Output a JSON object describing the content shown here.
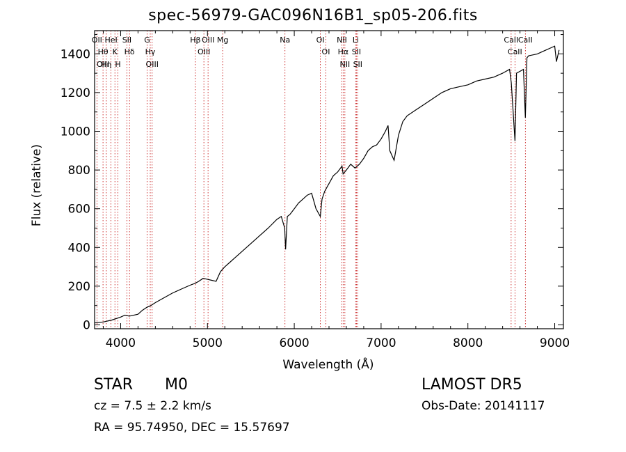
{
  "chart_data": {
    "type": "line",
    "title": "spec-56979-GAC096N16B1_sp05-206.fits",
    "xlabel": "Wavelength (Å)",
    "ylabel": "Flux (relative)",
    "xlim": [
      3700,
      9100
    ],
    "ylim": [
      -20,
      1520
    ],
    "x_ticks": [
      4000,
      5000,
      6000,
      7000,
      8000,
      9000
    ],
    "y_ticks": [
      0,
      200,
      400,
      600,
      800,
      1000,
      1200,
      1400
    ],
    "grid": false,
    "series": [
      {
        "x": [
          3700,
          3800,
          3900,
          4000,
          4050,
          4100,
          4200,
          4250,
          4300,
          4350,
          4400,
          4500,
          4600,
          4700,
          4800,
          4860,
          4900,
          4950,
          5000,
          5050,
          5100,
          5150,
          5200,
          5250,
          5300,
          5400,
          5500,
          5600,
          5700,
          5800,
          5850,
          5890,
          5900,
          5920,
          5950,
          6000,
          6050,
          6100,
          6150,
          6200,
          6250,
          6300,
          6320,
          6350,
          6400,
          6450,
          6500,
          6550,
          6563,
          6600,
          6650,
          6700,
          6750,
          6800,
          6850,
          6900,
          6950,
          7000,
          7050,
          7080,
          7100,
          7150,
          7200,
          7250,
          7300,
          7400,
          7500,
          7600,
          7700,
          7800,
          7900,
          8000,
          8100,
          8200,
          8300,
          8400,
          8480,
          8500,
          8542,
          8560,
          8600,
          8640,
          8662,
          8680,
          8700,
          8800,
          8850,
          8900,
          8950,
          9000,
          9020,
          9050
        ],
        "y": [
          10,
          15,
          25,
          40,
          50,
          45,
          55,
          75,
          90,
          100,
          115,
          140,
          165,
          185,
          205,
          215,
          225,
          240,
          235,
          230,
          225,
          275,
          300,
          320,
          340,
          380,
          420,
          460,
          500,
          545,
          560,
          500,
          390,
          560,
          570,
          600,
          630,
          650,
          670,
          680,
          600,
          560,
          650,
          690,
          730,
          770,
          790,
          820,
          780,
          800,
          830,
          810,
          830,
          860,
          900,
          920,
          930,
          960,
          1000,
          1030,
          900,
          850,
          980,
          1050,
          1080,
          1110,
          1140,
          1170,
          1200,
          1220,
          1230,
          1240,
          1260,
          1270,
          1280,
          1300,
          1320,
          1250,
          950,
          1300,
          1310,
          1320,
          1070,
          1380,
          1390,
          1400,
          1410,
          1420,
          1430,
          1440,
          1360,
          1420
        ]
      }
    ],
    "lines": [
      {
        "x": 3727,
        "labels": [
          "OII"
        ]
      },
      {
        "x": 3797,
        "labels": [
          "Hθ",
          "OIII"
        ]
      },
      {
        "x": 3835,
        "labels": [
          "Hη"
        ]
      },
      {
        "x": 3889,
        "labels": [
          "HeI"
        ]
      },
      {
        "x": 3934,
        "labels": [
          "K"
        ]
      },
      {
        "x": 3969,
        "labels": [
          "H"
        ]
      },
      {
        "x": 4072,
        "labels": [
          "SII"
        ]
      },
      {
        "x": 4102,
        "labels": [
          "Hδ"
        ]
      },
      {
        "x": 4305,
        "labels": [
          "G"
        ]
      },
      {
        "x": 4341,
        "labels": [
          "Hγ"
        ]
      },
      {
        "x": 4363,
        "labels": [
          "OIII"
        ]
      },
      {
        "x": 4861,
        "labels": [
          "Hβ"
        ]
      },
      {
        "x": 4959,
        "labels": [
          "OIII"
        ]
      },
      {
        "x": 5007,
        "labels": [
          "OIII"
        ]
      },
      {
        "x": 5175,
        "labels": [
          "Mg"
        ]
      },
      {
        "x": 5893,
        "labels": [
          "Na"
        ]
      },
      {
        "x": 6300,
        "labels": [
          "OI"
        ]
      },
      {
        "x": 6364,
        "labels": [
          "OI"
        ]
      },
      {
        "x": 6548,
        "labels": [
          "NII"
        ]
      },
      {
        "x": 6563,
        "labels": [
          "Hα"
        ]
      },
      {
        "x": 6583,
        "labels": [
          "NII"
        ]
      },
      {
        "x": 6707,
        "labels": [
          "Li"
        ]
      },
      {
        "x": 6716,
        "labels": [
          "SII"
        ]
      },
      {
        "x": 6731,
        "labels": [
          "SII"
        ]
      },
      {
        "x": 8498,
        "labels": [
          "CaII"
        ]
      },
      {
        "x": 8542,
        "labels": [
          "CaII"
        ]
      },
      {
        "x": 8662,
        "labels": [
          "CaII"
        ]
      }
    ]
  },
  "info": {
    "class_label": "STAR",
    "subclass_label": "M0",
    "survey": "LAMOST DR5",
    "cz": "cz = 7.5 ± 2.2 km/s",
    "obs_date": "Obs-Date: 20141117",
    "coords": "RA =  95.74950, DEC =  15.57697"
  },
  "colors": {
    "axis": "#000000",
    "spectrum": "#000000",
    "line_markers": "#c00000"
  }
}
